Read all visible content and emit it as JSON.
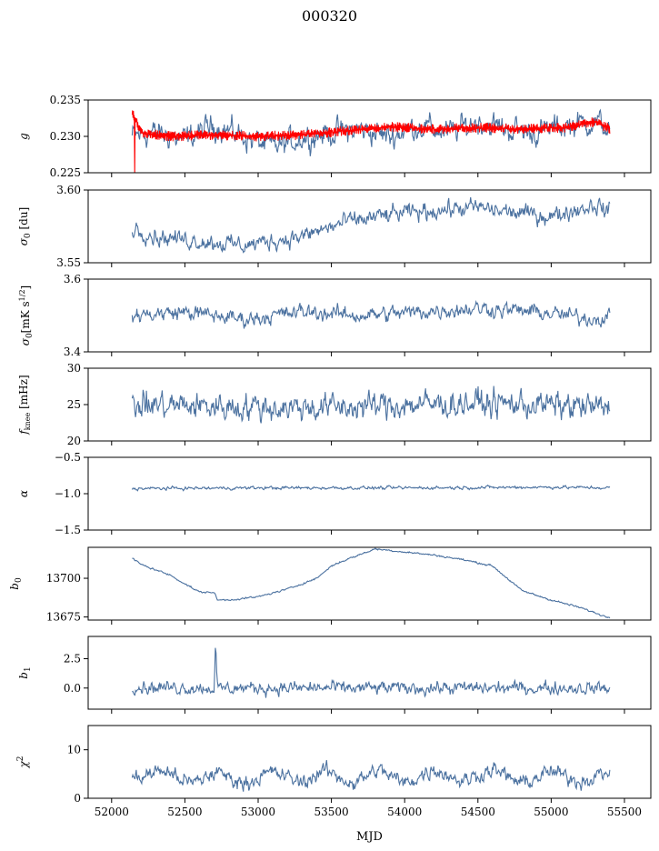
{
  "figure": {
    "title": "000320",
    "xlabel": "MJD"
  },
  "colors": {
    "series": "#4c72a0",
    "fit": "#ff0000"
  },
  "chart_data": [
    {
      "type": "line",
      "ylabel": "g",
      "ylim": [
        0.225,
        0.235
      ],
      "yticks": [
        0.225,
        0.23,
        0.235
      ],
      "ytick_labels": [
        "0.225",
        "0.230",
        "0.235"
      ],
      "x_range": [
        52140,
        55400
      ],
      "series": [
        {
          "role": "data",
          "x": [
            52140,
            52300,
            52500,
            52700,
            52900,
            53100,
            53300,
            53500,
            53700,
            53900,
            54100,
            54300,
            54500,
            54700,
            54900,
            55100,
            55300,
            55400
          ],
          "y": [
            0.23,
            0.2305,
            0.2295,
            0.2315,
            0.23,
            0.2285,
            0.2298,
            0.2305,
            0.231,
            0.23,
            0.2315,
            0.2305,
            0.232,
            0.231,
            0.2305,
            0.2315,
            0.232,
            0.231
          ],
          "noise": 0.0018
        },
        {
          "role": "fit",
          "x": [
            52140,
            52200,
            52400,
            52700,
            53000,
            53300,
            53600,
            53900,
            54200,
            54500,
            54800,
            55100,
            55300,
            55400
          ],
          "y": [
            0.2335,
            0.2305,
            0.23,
            0.2302,
            0.23,
            0.2302,
            0.2308,
            0.2313,
            0.231,
            0.2312,
            0.231,
            0.2312,
            0.232,
            0.231
          ],
          "noise": 0.0007
        }
      ]
    },
    {
      "type": "line",
      "ylabel": "σ0 [du]",
      "ylim": [
        3.55,
        3.6
      ],
      "yticks": [
        3.55,
        3.6
      ],
      "ytick_labels": [
        "3.55",
        "3.60"
      ],
      "x_range": [
        52140,
        55400
      ],
      "series": [
        {
          "role": "data",
          "x": [
            52140,
            52300,
            52600,
            52900,
            53100,
            53300,
            53600,
            53900,
            54200,
            54500,
            54700,
            55000,
            55300,
            55400
          ],
          "y": [
            3.575,
            3.568,
            3.565,
            3.562,
            3.565,
            3.568,
            3.578,
            3.583,
            3.586,
            3.588,
            3.585,
            3.582,
            3.59,
            3.585
          ],
          "noise": 0.006
        }
      ]
    },
    {
      "type": "line",
      "ylabel": "σ0[mK s^1/2]",
      "ylim": [
        3.4,
        3.6
      ],
      "yticks": [
        3.4,
        3.6
      ],
      "ytick_labels": [
        "3.4",
        "3.6"
      ],
      "x_range": [
        52140,
        55400
      ],
      "series": [
        {
          "role": "data",
          "x": [
            52140,
            52500,
            52900,
            53300,
            53700,
            54100,
            54500,
            54900,
            55300,
            55400
          ],
          "y": [
            3.5,
            3.51,
            3.49,
            3.51,
            3.5,
            3.51,
            3.52,
            3.51,
            3.49,
            3.5
          ],
          "noise": 0.022
        }
      ]
    },
    {
      "type": "line",
      "ylabel": "f_knee [mHz]",
      "ylim": [
        20,
        30
      ],
      "yticks": [
        20,
        25,
        30
      ],
      "ytick_labels": [
        "20",
        "25",
        "30"
      ],
      "x_range": [
        52140,
        55400
      ],
      "series": [
        {
          "role": "data",
          "x": [
            52140,
            52600,
            53100,
            53600,
            54100,
            54600,
            55100,
            55400
          ],
          "y": [
            25.0,
            24.8,
            24.6,
            24.7,
            25.0,
            25.2,
            24.8,
            24.5
          ],
          "noise": 1.9
        }
      ]
    },
    {
      "type": "line",
      "ylabel": "α",
      "ylim": [
        -1.5,
        -0.5
      ],
      "yticks": [
        -1.5,
        -1.0,
        -0.5
      ],
      "ytick_labels": [
        "−1.5",
        "−1.0",
        "−0.5"
      ],
      "x_range": [
        52140,
        55400
      ],
      "series": [
        {
          "role": "data",
          "x": [
            52140,
            53000,
            54000,
            55000,
            55400
          ],
          "y": [
            -0.93,
            -0.92,
            -0.92,
            -0.91,
            -0.92
          ],
          "noise": 0.022
        }
      ]
    },
    {
      "type": "line",
      "ylabel": "b0",
      "ylim": [
        13673,
        13720
      ],
      "yticks": [
        13675,
        13700
      ],
      "ytick_labels": [
        "13675",
        "13700"
      ],
      "x_range": [
        52140,
        55400
      ],
      "series": [
        {
          "role": "data",
          "x": [
            52140,
            52200,
            52400,
            52600,
            52700,
            52720,
            52800,
            53000,
            53200,
            53400,
            53500,
            53600,
            53800,
            54000,
            54200,
            54400,
            54600,
            54800,
            55000,
            55200,
            55380,
            55400
          ],
          "y": [
            13713,
            13709,
            13702,
            13691,
            13691,
            13686,
            13686,
            13688,
            13693,
            13700,
            13708,
            13712,
            13719,
            13717,
            13715,
            13712,
            13708,
            13692,
            13686,
            13681,
            13675,
            13675
          ],
          "noise": 0.6
        }
      ]
    },
    {
      "type": "line",
      "ylabel": "b1",
      "ylim": [
        -1.8,
        4.4
      ],
      "yticks": [
        0.0,
        2.5
      ],
      "ytick_labels": [
        "0.0",
        "2.5"
      ],
      "x_range": [
        52140,
        55400
      ],
      "series": [
        {
          "role": "data",
          "x": [
            52140,
            52700,
            52710,
            52720,
            53200,
            54000,
            54800,
            55400
          ],
          "y": [
            0.1,
            0.0,
            3.9,
            0.0,
            0.0,
            0.0,
            0.0,
            0.0
          ],
          "noise": 0.55
        }
      ]
    },
    {
      "type": "line",
      "ylabel": "χ2",
      "ylim": [
        0,
        15
      ],
      "yticks": [
        0,
        10
      ],
      "ytick_labels": [
        "0",
        "10"
      ],
      "x_range": [
        52140,
        55400
      ],
      "xticks": [
        52000,
        52500,
        53000,
        53500,
        54000,
        54500,
        55000,
        55500
      ],
      "xtick_labels": [
        "52000",
        "52500",
        "53000",
        "53500",
        "54000",
        "54500",
        "55000",
        "55500"
      ],
      "xlim": [
        51840,
        55680
      ],
      "series": [
        {
          "role": "data",
          "x": [
            52140,
            52350,
            52550,
            52720,
            52900,
            53100,
            53300,
            53450,
            53650,
            53820,
            54000,
            54200,
            54400,
            54600,
            54800,
            55000,
            55200,
            55400
          ],
          "y": [
            4.0,
            5.8,
            3.0,
            5.5,
            3.0,
            5.5,
            3.2,
            5.8,
            3.0,
            6.0,
            3.0,
            6.0,
            3.5,
            6.0,
            3.0,
            5.5,
            3.5,
            5.5
          ],
          "noise": 1.6
        }
      ]
    }
  ]
}
